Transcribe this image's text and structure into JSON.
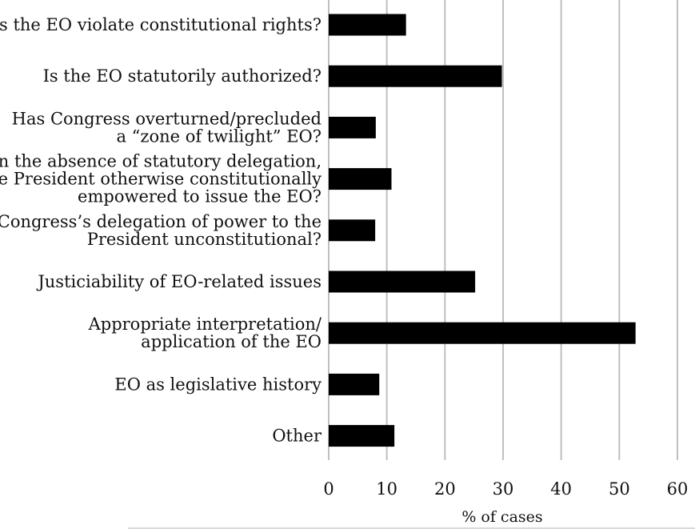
{
  "chart_data": {
    "type": "bar",
    "orientation": "horizontal",
    "title": "",
    "xlabel": "% of cases",
    "ylabel": "",
    "xlim": [
      0,
      60
    ],
    "xticks": [
      0,
      10,
      20,
      30,
      40,
      50,
      60
    ],
    "grid": true,
    "legend": "none",
    "bar_color": "#000000",
    "categories": [
      [
        "Does the EO violate constitutional rights?"
      ],
      [
        "Is the EO statutorily authorized?"
      ],
      [
        "Has Congress overturned/precluded",
        "a “zone of twilight” EO?"
      ],
      [
        "In the absence of statutory delegation,",
        "is the President otherwise constitutionally",
        "empowered to issue the EO?"
      ],
      [
        "Was Congress’s delegation of power to the",
        "President unconstitutional?"
      ],
      [
        "Justiciability of EO-related issues"
      ],
      [
        "Appropriate interpretation/",
        "application of the EO"
      ],
      [
        "EO as legislative history"
      ],
      [
        "Other"
      ]
    ],
    "values": [
      13.3,
      29.8,
      8.1,
      10.8,
      8.0,
      25.2,
      52.8,
      8.7,
      11.3
    ]
  }
}
